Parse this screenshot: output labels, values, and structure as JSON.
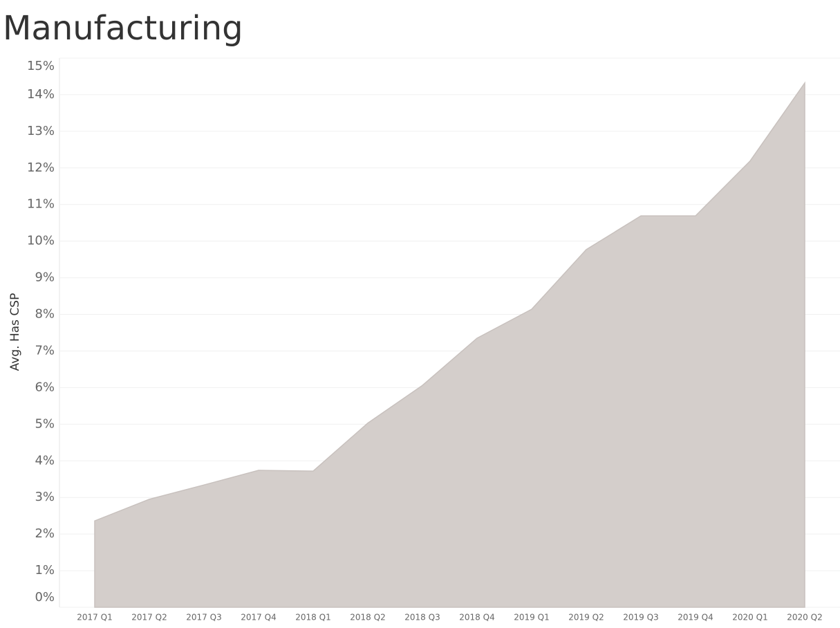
{
  "chart_data": {
    "type": "area",
    "title": "Manufacturing",
    "y_label": "Avg. Has CSP",
    "categories": [
      "2017 Q1",
      "2017 Q2",
      "2017 Q3",
      "2017 Q4",
      "2018 Q1",
      "2018 Q2",
      "2018 Q3",
      "2018 Q4",
      "2019 Q1",
      "2019 Q2",
      "2019 Q3",
      "2019 Q4",
      "2020 Q1",
      "2020 Q2"
    ],
    "values": [
      2.36,
      2.95,
      3.34,
      3.74,
      3.72,
      5.03,
      6.06,
      7.35,
      8.14,
      9.77,
      10.69,
      10.69,
      12.19,
      14.32
    ],
    "color": "#d4cecb",
    "ylim": [
      0,
      15
    ],
    "yticks": [
      {
        "value": 0,
        "label": "0%"
      },
      {
        "value": 1,
        "label": "1%"
      },
      {
        "value": 2,
        "label": "2%"
      },
      {
        "value": 3,
        "label": "3%"
      },
      {
        "value": 4,
        "label": "4%"
      },
      {
        "value": 5,
        "label": "5%"
      },
      {
        "value": 6,
        "label": "6%"
      },
      {
        "value": 7,
        "label": "7%"
      },
      {
        "value": 8,
        "label": "8%"
      },
      {
        "value": 9,
        "label": "9%"
      },
      {
        "value": 10,
        "label": "10%"
      },
      {
        "value": 11,
        "label": "11%"
      },
      {
        "value": 12,
        "label": "12%"
      },
      {
        "value": 13,
        "label": "13%"
      },
      {
        "value": 14,
        "label": "14%"
      },
      {
        "value": 15,
        "label": "15%"
      }
    ],
    "grid": true
  }
}
